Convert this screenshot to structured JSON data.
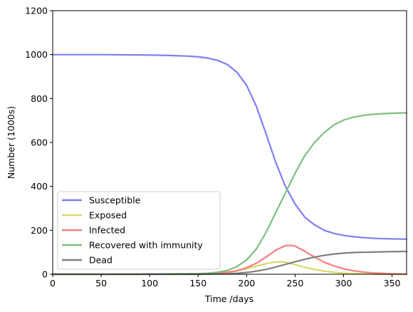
{
  "chart_data": {
    "type": "line",
    "title": "",
    "xlabel": "Time /days",
    "ylabel": "Number (1000s)",
    "xlim": [
      0,
      365
    ],
    "ylim": [
      0,
      1200
    ],
    "xticks": [
      0,
      50,
      100,
      150,
      200,
      250,
      300,
      350
    ],
    "yticks": [
      0,
      200,
      400,
      600,
      800,
      1000,
      1200
    ],
    "grid": false,
    "legend_position": "lower-left",
    "series": [
      {
        "name": "Susceptible",
        "color": "#7f7ff5",
        "x": [
          0,
          50,
          100,
          120,
          140,
          150,
          160,
          170,
          180,
          190,
          200,
          210,
          220,
          230,
          240,
          250,
          260,
          270,
          280,
          290,
          300,
          310,
          320,
          330,
          340,
          350,
          365
        ],
        "y": [
          1000,
          1000,
          998,
          996,
          993,
          990,
          984,
          974,
          955,
          920,
          860,
          765,
          640,
          510,
          400,
          320,
          260,
          225,
          200,
          186,
          177,
          171,
          167,
          164,
          162,
          161,
          160
        ]
      },
      {
        "name": "Exposed",
        "color": "#d9d96a",
        "x": [
          0,
          50,
          100,
          150,
          170,
          180,
          190,
          200,
          210,
          220,
          230,
          235,
          240,
          250,
          260,
          270,
          280,
          290,
          300,
          310,
          320,
          330,
          340,
          350,
          365
        ],
        "y": [
          0,
          0,
          0,
          2,
          5,
          8,
          15,
          25,
          37,
          48,
          56,
          57,
          55,
          44,
          32,
          22,
          14,
          9,
          5,
          3,
          2,
          1,
          0,
          0,
          0
        ]
      },
      {
        "name": "Infected",
        "color": "#f57f7f",
        "x": [
          0,
          50,
          100,
          150,
          170,
          180,
          190,
          200,
          210,
          220,
          230,
          240,
          245,
          250,
          260,
          270,
          280,
          290,
          300,
          310,
          320,
          330,
          340,
          350,
          365
        ],
        "y": [
          0,
          0,
          0,
          2,
          5,
          9,
          16,
          30,
          50,
          78,
          110,
          130,
          132,
          128,
          105,
          78,
          55,
          38,
          25,
          16,
          10,
          6,
          4,
          2,
          1
        ]
      },
      {
        "name": "Recovered with immunity",
        "color": "#7fbf7f",
        "x": [
          0,
          50,
          100,
          150,
          160,
          170,
          180,
          190,
          200,
          210,
          220,
          230,
          240,
          250,
          260,
          270,
          280,
          290,
          300,
          310,
          320,
          330,
          340,
          350,
          365
        ],
        "y": [
          0,
          0,
          1,
          3,
          5,
          9,
          17,
          35,
          65,
          115,
          190,
          280,
          370,
          460,
          540,
          600,
          645,
          680,
          702,
          715,
          723,
          728,
          731,
          733,
          735
        ]
      },
      {
        "name": "Dead",
        "color": "#7f7f7f",
        "x": [
          0,
          50,
          100,
          150,
          180,
          190,
          200,
          210,
          220,
          230,
          240,
          250,
          260,
          270,
          280,
          290,
          300,
          310,
          320,
          330,
          340,
          350,
          365
        ],
        "y": [
          0,
          0,
          0,
          0,
          2,
          4,
          8,
          14,
          22,
          33,
          45,
          57,
          68,
          78,
          86,
          92,
          96,
          99,
          100,
          101,
          102,
          103,
          104
        ]
      }
    ]
  }
}
